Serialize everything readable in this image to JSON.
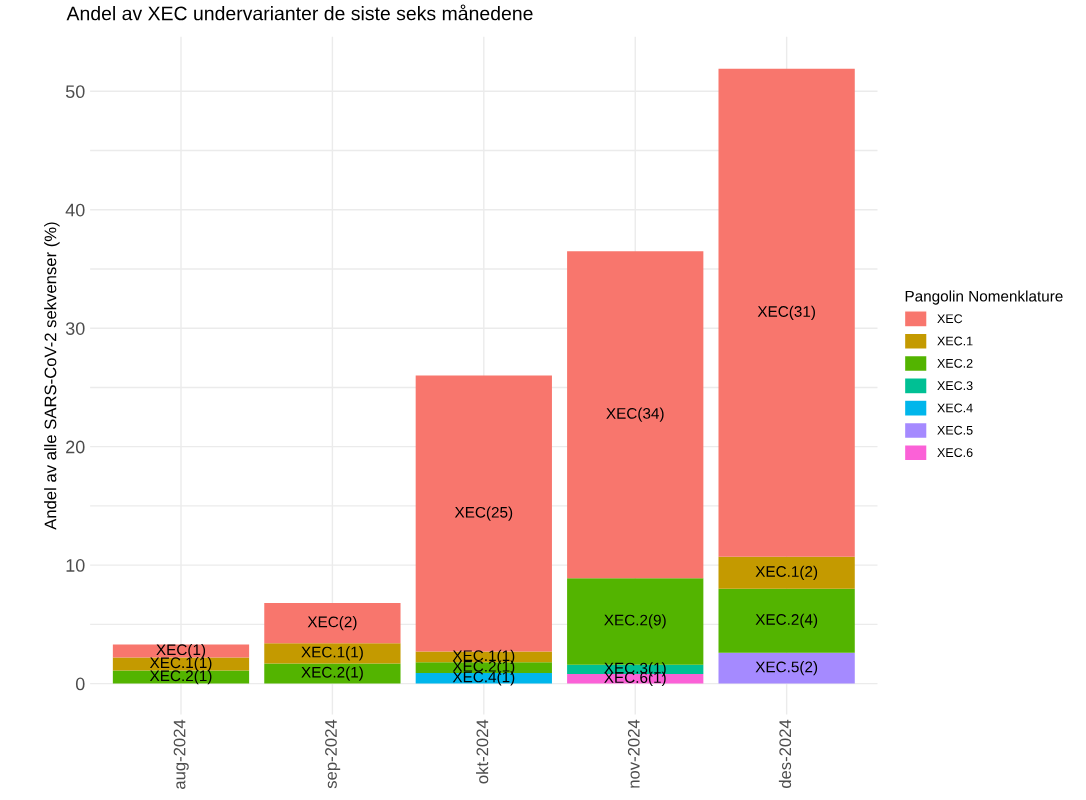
{
  "chart_data": {
    "type": "bar",
    "title": "Andel av XEC undervarianter de siste seks månedene",
    "ylabel": "Andel av alle SARS-CoV-2 sekvenser (%)",
    "legend_title": "Pangolin Nomenklature",
    "categories": [
      "aug-2024",
      "sep-2024",
      "okt-2024",
      "nov-2024",
      "des-2024"
    ],
    "stacked": true,
    "series": [
      {
        "name": "XEC.6",
        "color": "#fb61d7",
        "values": [
          null,
          null,
          null,
          0.8,
          null
        ],
        "value_labels": [
          null,
          null,
          null,
          "XEC.6(1)",
          null
        ]
      },
      {
        "name": "XEC.5",
        "color": "#a58aff",
        "values": [
          null,
          null,
          null,
          null,
          2.6
        ],
        "value_labels": [
          null,
          null,
          null,
          null,
          "XEC.5(2)"
        ]
      },
      {
        "name": "XEC.4",
        "color": "#00b6eb",
        "values": [
          null,
          null,
          0.9,
          null,
          null
        ],
        "value_labels": [
          null,
          null,
          "XEC.4(1)",
          null,
          null
        ]
      },
      {
        "name": "XEC.3",
        "color": "#00c094",
        "values": [
          null,
          null,
          null,
          0.8,
          null
        ],
        "value_labels": [
          null,
          null,
          null,
          "XEC.3(1)",
          null
        ]
      },
      {
        "name": "XEC.2",
        "color": "#53b400",
        "values": [
          1.1,
          1.7,
          0.9,
          7.3,
          5.4
        ],
        "value_labels": [
          "XEC.2(1)",
          "XEC.2(1)",
          "XEC.2(1)",
          "XEC.2(9)",
          "XEC.2(4)"
        ]
      },
      {
        "name": "XEC.1",
        "color": "#c49a00",
        "values": [
          1.1,
          1.7,
          0.9,
          null,
          2.7
        ],
        "value_labels": [
          "XEC.1(1)",
          "XEC.1(1)",
          "XEC.1(1)",
          null,
          "XEC.1(2)"
        ]
      },
      {
        "name": "XEC",
        "color": "#f8766d",
        "values": [
          1.1,
          3.4,
          23.3,
          27.6,
          41.2
        ],
        "value_labels": [
          "XEC(1)",
          "XEC(2)",
          "XEC(25)",
          "XEC(34)",
          "XEC(31)"
        ]
      }
    ],
    "ylim": [
      -2.6,
      54.6
    ],
    "yticks": [
      0,
      {
        "value": 5,
        "label": null
      },
      10,
      {
        "value": 15,
        "label": null
      },
      20,
      {
        "value": 25,
        "label": null
      },
      30,
      {
        "value": 35,
        "label": null
      },
      40,
      {
        "value": 45,
        "label": null
      },
      50
    ],
    "grid": true,
    "legend": "right"
  }
}
